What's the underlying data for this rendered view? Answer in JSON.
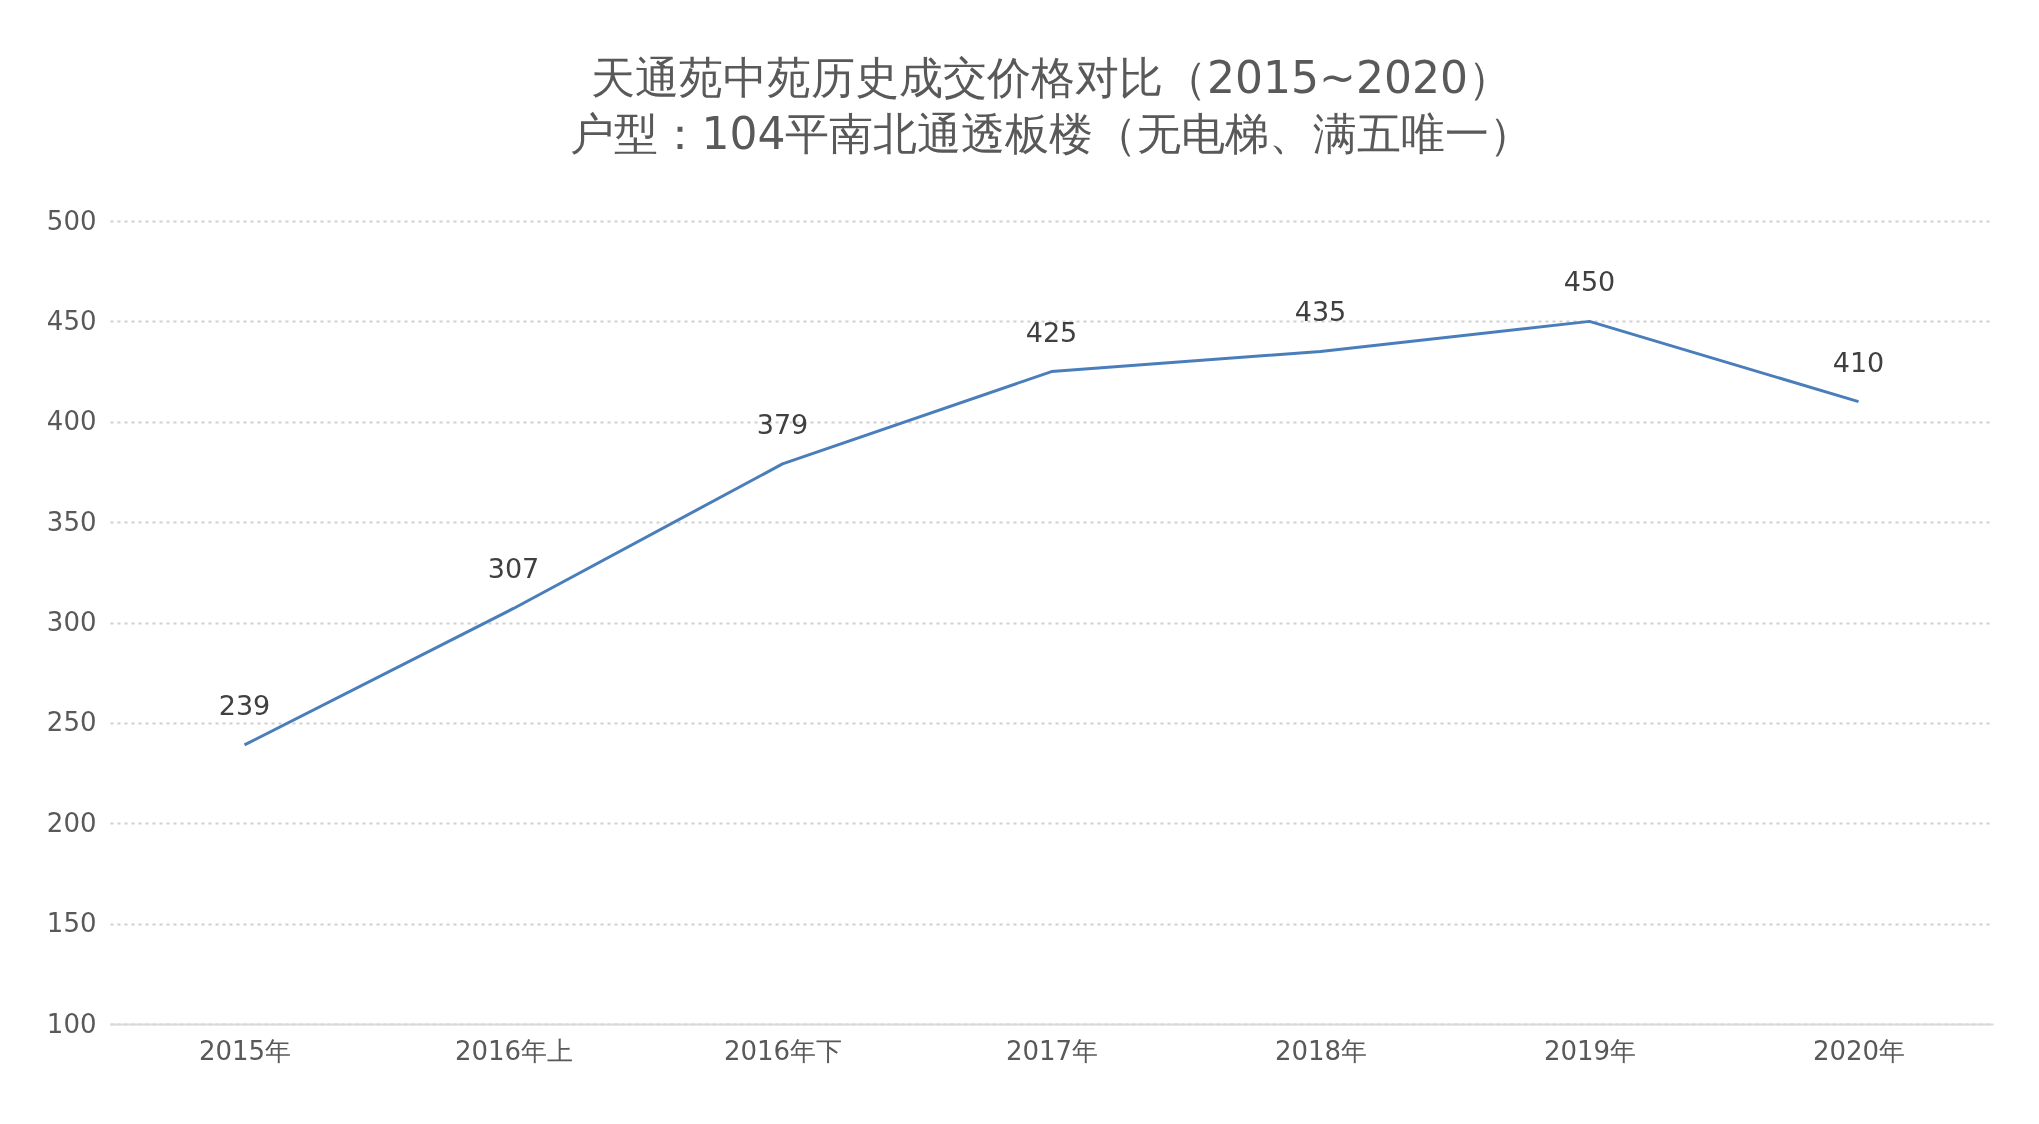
{
  "chart_data": {
    "type": "line",
    "title": "天通苑中苑历史成交价格对比（2015~2020）",
    "subtitle": "户型：104平南北通透板楼（无电梯、满五唯一）",
    "categories": [
      "2015年",
      "2016年上",
      "2016年下",
      "2017年",
      "2018年",
      "2019年",
      "2020年"
    ],
    "series": [
      {
        "color": "#4a7ebb",
        "values": [
          239,
          307,
          379,
          425,
          435,
          450,
          410
        ]
      }
    ],
    "ylim": [
      100,
      500
    ],
    "yticks": [
      100,
      150,
      200,
      250,
      300,
      350,
      400,
      450,
      500
    ],
    "grid": "y",
    "data_labels": true,
    "legend": false,
    "marker": "none",
    "line_style": "solid"
  }
}
